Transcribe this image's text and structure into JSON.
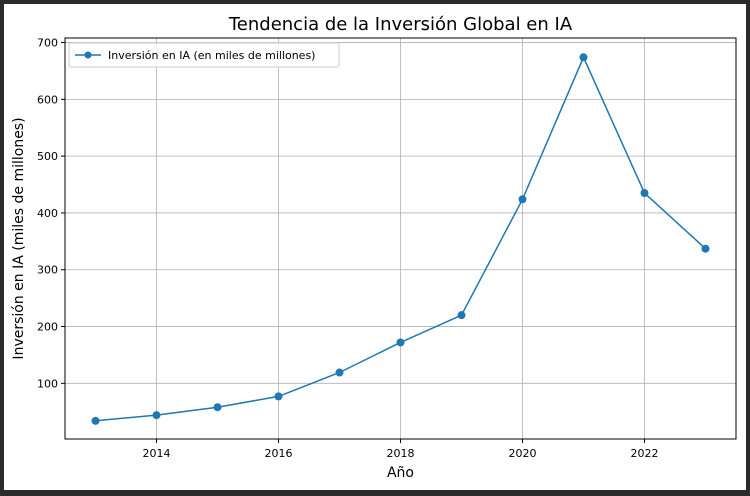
{
  "chart_data": {
    "type": "line",
    "title": "Tendencia de la Inversión Global en IA",
    "xlabel": "Año",
    "ylabel": "Inversión en IA (miles de millones)",
    "x": [
      2013,
      2014,
      2015,
      2016,
      2017,
      2018,
      2019,
      2020,
      2021,
      2022,
      2023
    ],
    "series": [
      {
        "name": "Inversión en IA (en miles de millones)",
        "values": [
          34,
          44,
          58,
          77,
          119,
          172,
          220,
          424,
          674,
          435,
          337
        ],
        "color": "#1f77b4"
      }
    ],
    "xlim": [
      2012.5,
      2023.5
    ],
    "ylim": [
      2,
      708
    ],
    "xticks": [
      2014,
      2016,
      2018,
      2020,
      2022
    ],
    "yticks": [
      100,
      200,
      300,
      400,
      500,
      600,
      700
    ],
    "grid": true,
    "legend_position": "upper-left"
  }
}
